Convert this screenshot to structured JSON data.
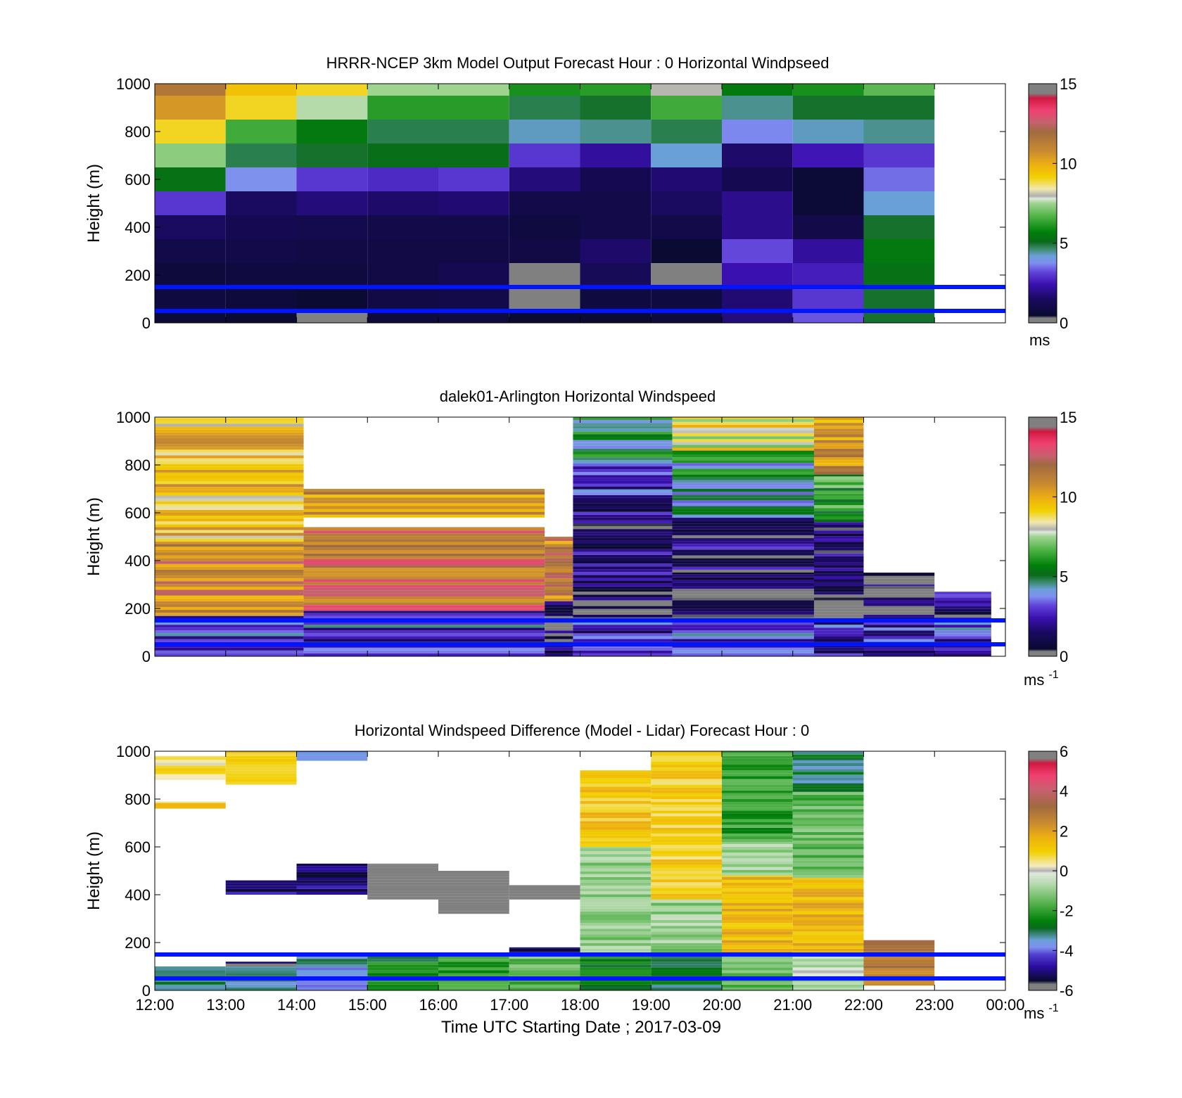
{
  "chart_data": [
    {
      "type": "heatmap",
      "title": "HRRR-NCEP 3km Model Output   Forecast Hour : 0 Horizontal Windpseed",
      "xlabel": "",
      "ylabel": "Height (m)",
      "xlim": [
        0,
        12
      ],
      "ylim": [
        0,
        1000
      ],
      "yticks": [
        "0",
        "200",
        "400",
        "600",
        "800",
        "1000"
      ],
      "xticklabels": [],
      "colorbar": {
        "min": 0,
        "max": 15,
        "ticks": [
          "0",
          "5",
          "10",
          "15"
        ],
        "unit": "ms",
        "unit_sup": ""
      },
      "reference_lines_m": [
        150,
        50
      ],
      "reference_line_color": "#0015ff",
      "hours": [
        0,
        1,
        2,
        3,
        4,
        5,
        6,
        7,
        8,
        9,
        10
      ],
      "levels_m": [
        0,
        50,
        150,
        250,
        350,
        450,
        550,
        650,
        750,
        850,
        950
      ],
      "values": [
        [
          0.6,
          0.5,
          0.3,
          0.7,
          0.8,
          0.5,
          0.5,
          0.7,
          1.8,
          3.3,
          5.0
        ],
        [
          0.8,
          0.7,
          0.5,
          0.9,
          1.0,
          0.0,
          0.8,
          0.8,
          1.7,
          3.0,
          5.0
        ],
        [
          0.7,
          0.8,
          0.8,
          0.9,
          1.2,
          0.3,
          1.3,
          0.0,
          2.4,
          2.6,
          5.3
        ],
        [
          1.0,
          1.0,
          0.9,
          0.9,
          0.9,
          0.9,
          1.6,
          0.5,
          3.2,
          2.2,
          5.5
        ],
        [
          1.5,
          1.2,
          1.1,
          1.0,
          1.0,
          0.8,
          1.0,
          1.0,
          2.0,
          1.0,
          5.0
        ],
        [
          3.0,
          1.5,
          1.8,
          1.6,
          1.7,
          1.0,
          1.0,
          1.5,
          2.0,
          0.6,
          4.2
        ],
        [
          5.3,
          3.8,
          3.0,
          2.8,
          3.0,
          1.8,
          1.2,
          1.7,
          1.2,
          0.6,
          3.5
        ],
        [
          7.3,
          4.8,
          5.0,
          5.2,
          5.2,
          3.0,
          2.2,
          4.2,
          1.6,
          2.5,
          3.0
        ],
        [
          9.0,
          6.5,
          5.5,
          4.8,
          4.8,
          4.3,
          4.5,
          4.8,
          3.7,
          4.3,
          4.5
        ],
        [
          10.5,
          9.0,
          7.6,
          6.2,
          6.2,
          4.8,
          5.0,
          6.5,
          4.5,
          5.0,
          5.0
        ],
        [
          11.5,
          9.5,
          9.0,
          7.5,
          7.5,
          6.0,
          6.2,
          8.0,
          5.5,
          6.0,
          6.8
        ]
      ]
    },
    {
      "type": "heatmap",
      "title": "dalek01-Arlington  Horizontal Windspeed",
      "xlabel": "",
      "ylabel": "Height (m)",
      "xlim": [
        0,
        12
      ],
      "ylim": [
        0,
        1000
      ],
      "yticks": [
        "0",
        "200",
        "400",
        "600",
        "800",
        "1000"
      ],
      "xticklabels": [],
      "colorbar": {
        "min": 0,
        "max": 15,
        "ticks": [
          "0",
          "5",
          "10",
          "15"
        ],
        "unit": "ms",
        "unit_sup": "-1"
      },
      "reference_lines_m": [
        150,
        50
      ],
      "reference_line_color": "#0015ff",
      "hour_segments": [
        {
          "from": 0.0,
          "to": 2.1,
          "bands": [
            [
              0,
              170,
              3.2
            ],
            [
              170,
              480,
              11.0
            ],
            [
              480,
              1000,
              9.5
            ]
          ]
        },
        {
          "from": 2.1,
          "to": 5.5,
          "bands": [
            [
              0,
              190,
              3.0
            ],
            [
              190,
              540,
              12.0
            ],
            [
              580,
              700,
              11.0
            ]
          ]
        },
        {
          "from": 5.5,
          "to": 5.9,
          "bands": [
            [
              0,
              230,
              1.0
            ],
            [
              230,
              500,
              11.0
            ]
          ]
        },
        {
          "from": 5.9,
          "to": 7.3,
          "bands": [
            [
              0,
              150,
              2.6
            ],
            [
              150,
              280,
              0.8
            ],
            [
              280,
              650,
              1.8
            ],
            [
              650,
              820,
              3.0
            ],
            [
              820,
              1000,
              5.0
            ]
          ]
        },
        {
          "from": 7.3,
          "to": 9.3,
          "bands": [
            [
              0,
              150,
              3.0
            ],
            [
              150,
              350,
              0.7
            ],
            [
              350,
              580,
              1.6
            ],
            [
              580,
              860,
              5.0
            ],
            [
              860,
              1000,
              8.5
            ]
          ]
        },
        {
          "from": 9.3,
          "to": 10.0,
          "bands": [
            [
              0,
              150,
              2.6
            ],
            [
              150,
              310,
              0.7
            ],
            [
              310,
              560,
              1.6
            ],
            [
              560,
              760,
              6.5
            ],
            [
              760,
              1000,
              10.5
            ]
          ]
        },
        {
          "from": 10.0,
          "to": 11.0,
          "bands": [
            [
              0,
              150,
              2.4
            ],
            [
              150,
              300,
              1.0
            ],
            [
              300,
              350,
              0.4
            ]
          ]
        },
        {
          "from": 11.0,
          "to": 11.8,
          "bands": [
            [
              0,
              150,
              3.0
            ],
            [
              150,
              270,
              1.8
            ]
          ]
        }
      ]
    },
    {
      "type": "heatmap",
      "title": "Horizontal Windspeed Difference (Model - Lidar) Forecast Hour : 0",
      "xlabel": "Time UTC  Starting Date ; 2017-03-09",
      "ylabel": "Height (m)",
      "xlim": [
        0,
        12
      ],
      "ylim": [
        0,
        1000
      ],
      "yticks": [
        "0",
        "200",
        "400",
        "600",
        "800",
        "1000"
      ],
      "xticklabels": [
        "12:00",
        "13:00",
        "14:00",
        "15:00",
        "16:00",
        "17:00",
        "18:00",
        "19:00",
        "20:00",
        "21:00",
        "22:00",
        "23:00",
        "00:00"
      ],
      "colorbar": {
        "min": -6,
        "max": 6,
        "ticks": [
          "-6",
          "-4",
          "-2",
          "0",
          "2",
          "4",
          "6"
        ],
        "unit": "ms",
        "unit_sup": "-1"
      },
      "reference_lines_m": [
        150,
        50
      ],
      "reference_line_color": "#0015ff",
      "hour_segments": [
        {
          "from": 0,
          "to": 1,
          "bands": [
            [
              0,
              100,
              -3.0
            ],
            [
              760,
              790,
              1.0
            ],
            [
              880,
              980,
              0.5
            ]
          ]
        },
        {
          "from": 1,
          "to": 2,
          "bands": [
            [
              0,
              100,
              -3.5
            ],
            [
              100,
              120,
              -5.5
            ],
            [
              400,
              460,
              -5.0
            ],
            [
              860,
              1000,
              1.2
            ]
          ]
        },
        {
          "from": 2,
          "to": 3,
          "bands": [
            [
              0,
              150,
              -3.5
            ],
            [
              400,
              530,
              -5.0
            ],
            [
              960,
              1000,
              -4.0
            ]
          ]
        },
        {
          "from": 3,
          "to": 4,
          "bands": [
            [
              0,
              150,
              -2.5
            ],
            [
              380,
              530,
              -6.5
            ]
          ]
        },
        {
          "from": 4,
          "to": 5,
          "bands": [
            [
              0,
              150,
              -2.0
            ],
            [
              320,
              500,
              -6.5
            ]
          ]
        },
        {
          "from": 5,
          "to": 6,
          "bands": [
            [
              0,
              150,
              -1.5
            ],
            [
              150,
              180,
              -5.0
            ],
            [
              380,
              440,
              -6.5
            ]
          ]
        },
        {
          "from": 6,
          "to": 7,
          "bands": [
            [
              0,
              150,
              -2.5
            ],
            [
              150,
              600,
              -1.0
            ],
            [
              600,
              920,
              1.2
            ]
          ]
        },
        {
          "from": 7,
          "to": 8,
          "bands": [
            [
              0,
              150,
              -2.8
            ],
            [
              150,
              380,
              -1.0
            ],
            [
              380,
              1000,
              1.0
            ]
          ]
        },
        {
          "from": 8,
          "to": 9,
          "bands": [
            [
              0,
              150,
              -1.5
            ],
            [
              150,
              480,
              1.5
            ],
            [
              480,
              620,
              -1.0
            ],
            [
              620,
              1000,
              -2.0
            ]
          ]
        },
        {
          "from": 9,
          "to": 10,
          "bands": [
            [
              0,
              150,
              -0.5
            ],
            [
              150,
              470,
              1.5
            ],
            [
              470,
              830,
              -1.5
            ],
            [
              830,
              1000,
              -3.0
            ]
          ]
        },
        {
          "from": 10,
          "to": 11,
          "bands": [
            [
              20,
              210,
              2.8
            ]
          ]
        }
      ]
    }
  ]
}
